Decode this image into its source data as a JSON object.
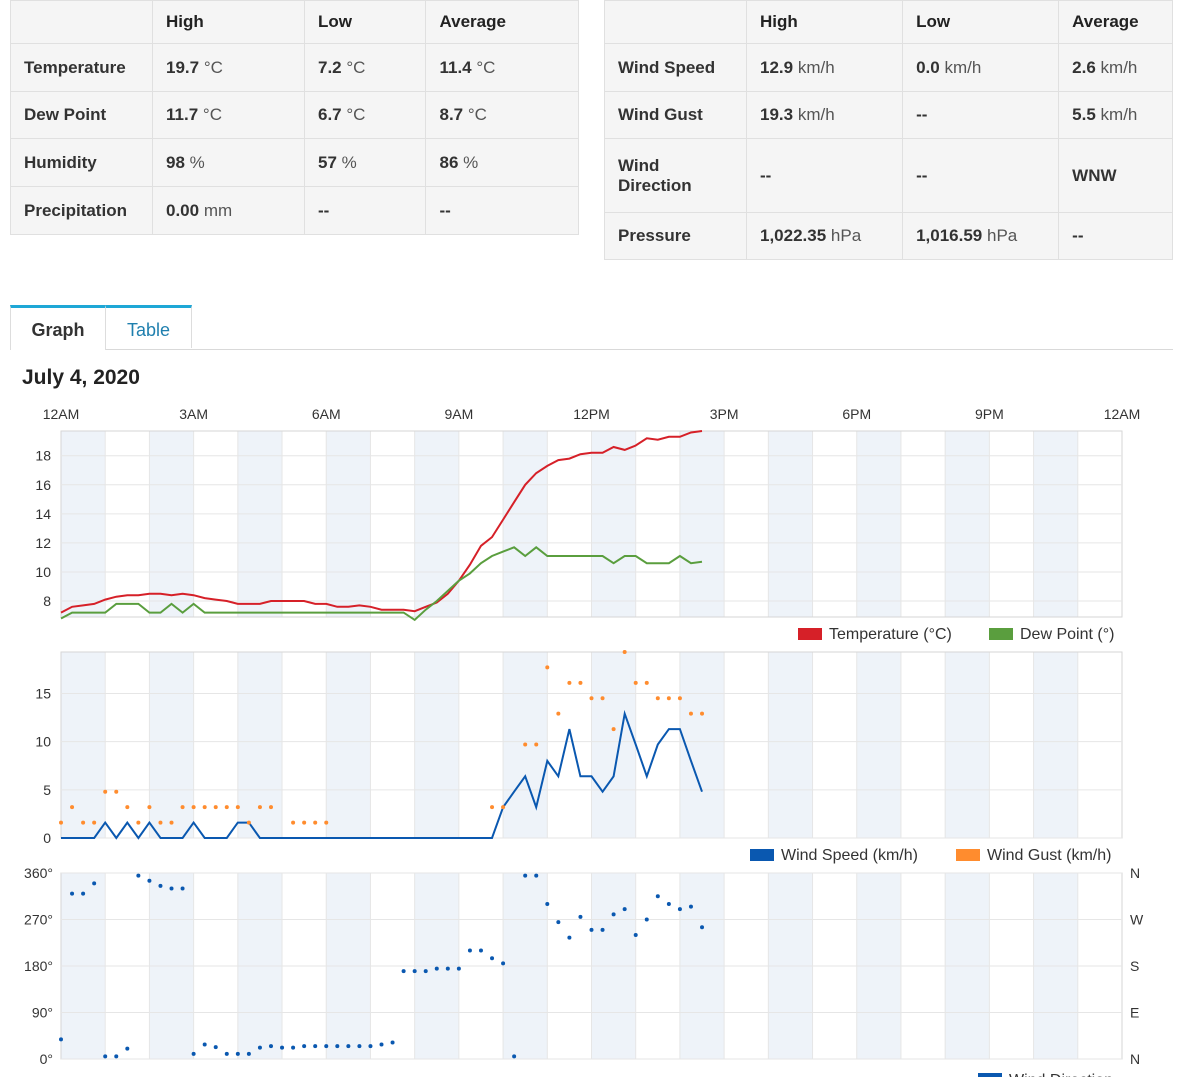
{
  "left_table": {
    "headers": [
      "",
      "High",
      "Low",
      "Average"
    ],
    "rows": [
      {
        "label": "Temperature",
        "high": "19.7",
        "high_unit": "°C",
        "low": "7.2",
        "low_unit": "°C",
        "avg": "11.4",
        "avg_unit": "°C"
      },
      {
        "label": "Dew Point",
        "high": "11.7",
        "high_unit": "°C",
        "low": "6.7",
        "low_unit": "°C",
        "avg": "8.7",
        "avg_unit": "°C"
      },
      {
        "label": "Humidity",
        "high": "98",
        "high_unit": "%",
        "low": "57",
        "low_unit": "%",
        "avg": "86",
        "avg_unit": "%"
      },
      {
        "label": "Precipitation",
        "high": "0.00",
        "high_unit": "mm",
        "low": "--",
        "low_unit": "",
        "avg": "--",
        "avg_unit": ""
      }
    ]
  },
  "right_table": {
    "headers": [
      "",
      "High",
      "Low",
      "Average"
    ],
    "rows": [
      {
        "label": "Wind Speed",
        "high": "12.9",
        "high_unit": "km/h",
        "low": "0.0",
        "low_unit": "km/h",
        "avg": "2.6",
        "avg_unit": "km/h"
      },
      {
        "label": "Wind Gust",
        "high": "19.3",
        "high_unit": "km/h",
        "low": "--",
        "low_unit": "",
        "avg": "5.5",
        "avg_unit": "km/h"
      },
      {
        "label": "Wind Direction",
        "high": "--",
        "high_unit": "",
        "low": "--",
        "low_unit": "",
        "avg": "WNW",
        "avg_unit": ""
      },
      {
        "label": "Pressure",
        "high": "1,022.35",
        "high_unit": "hPa",
        "low": "1,016.59",
        "low_unit": "hPa",
        "avg": "--",
        "avg_unit": ""
      }
    ]
  },
  "tabs": {
    "graph": "Graph",
    "table": "Table"
  },
  "date_title": "July 4, 2020",
  "colors": {
    "temperature": "#d62028",
    "dew_point": "#5a9e3e",
    "wind_speed": "#0a58b0",
    "wind_gust": "#ff8c2e",
    "wind_direction": "#0a58b0",
    "band": "#eef3f9"
  },
  "chart_data": [
    {
      "type": "line",
      "x_ticks": [
        "12AM",
        "3AM",
        "6AM",
        "9AM",
        "12PM",
        "3PM",
        "6PM",
        "9PM",
        "12AM"
      ],
      "x_range_hours": [
        0,
        24
      ],
      "y_ticks": [
        8,
        10,
        12,
        14,
        16,
        18
      ],
      "ylim": [
        6.9,
        19.7
      ],
      "legend": "bottom-right",
      "series": [
        {
          "name": "Temperature (°C)",
          "x": [
            0,
            0.25,
            0.5,
            0.75,
            1,
            1.25,
            1.5,
            1.75,
            2,
            2.25,
            2.5,
            2.75,
            3,
            3.25,
            3.5,
            3.75,
            4,
            4.25,
            4.5,
            4.75,
            5,
            5.25,
            5.5,
            5.75,
            6,
            6.25,
            6.5,
            6.75,
            7,
            7.25,
            7.5,
            7.75,
            8,
            8.25,
            8.5,
            8.75,
            9,
            9.25,
            9.5,
            9.75,
            10,
            10.25,
            10.5,
            10.75,
            11,
            11.25,
            11.5,
            11.75,
            12,
            12.25,
            12.5,
            12.75,
            13,
            13.25,
            13.5,
            13.75,
            14,
            14.25,
            14.5
          ],
          "values": [
            7.2,
            7.6,
            7.7,
            7.8,
            8.1,
            8.3,
            8.4,
            8.4,
            8.5,
            8.5,
            8.4,
            8.5,
            8.4,
            8.2,
            8.1,
            8.0,
            7.8,
            7.8,
            7.8,
            8.0,
            8.0,
            8.0,
            8.0,
            7.8,
            7.8,
            7.6,
            7.6,
            7.7,
            7.6,
            7.4,
            7.4,
            7.4,
            7.3,
            7.6,
            7.9,
            8.5,
            9.4,
            10.5,
            11.8,
            12.4,
            13.6,
            14.8,
            16.0,
            16.8,
            17.3,
            17.7,
            17.8,
            18.1,
            18.2,
            18.2,
            18.6,
            18.4,
            18.7,
            19.2,
            19.1,
            19.3,
            19.3,
            19.6,
            19.7
          ]
        },
        {
          "name": "Dew Point (°)",
          "x": [
            0,
            0.25,
            0.5,
            0.75,
            1,
            1.25,
            1.5,
            1.75,
            2,
            2.25,
            2.5,
            2.75,
            3,
            3.25,
            3.5,
            3.75,
            4,
            4.25,
            4.5,
            4.75,
            5,
            5.25,
            5.5,
            5.75,
            6,
            6.25,
            6.5,
            6.75,
            7,
            7.25,
            7.5,
            7.75,
            8,
            8.25,
            8.5,
            8.75,
            9,
            9.25,
            9.5,
            9.75,
            10,
            10.25,
            10.5,
            10.75,
            11,
            11.25,
            11.5,
            11.75,
            12,
            12.25,
            12.5,
            12.75,
            13,
            13.25,
            13.5,
            13.75,
            14,
            14.25,
            14.5
          ],
          "values": [
            6.8,
            7.2,
            7.2,
            7.2,
            7.2,
            7.8,
            7.8,
            7.8,
            7.2,
            7.2,
            7.8,
            7.2,
            7.8,
            7.2,
            7.2,
            7.2,
            7.2,
            7.2,
            7.2,
            7.2,
            7.2,
            7.2,
            7.2,
            7.2,
            7.2,
            7.2,
            7.2,
            7.2,
            7.2,
            7.2,
            7.2,
            7.2,
            6.7,
            7.4,
            8.0,
            8.7,
            9.4,
            9.9,
            10.6,
            11.1,
            11.4,
            11.7,
            11.1,
            11.7,
            11.1,
            11.1,
            11.1,
            11.1,
            11.1,
            11.1,
            10.6,
            11.1,
            11.1,
            10.6,
            10.6,
            10.6,
            11.1,
            10.6,
            10.7
          ]
        }
      ]
    },
    {
      "type": "line",
      "x_range_hours": [
        0,
        24
      ],
      "y_ticks": [
        0,
        5,
        10,
        15
      ],
      "ylim": [
        0,
        19.3
      ],
      "legend": "bottom-right",
      "series": [
        {
          "name": "Wind Speed (km/h)",
          "x": [
            0,
            0.25,
            0.5,
            0.75,
            1,
            1.25,
            1.5,
            1.75,
            2,
            2.25,
            2.5,
            2.75,
            3,
            3.25,
            3.5,
            3.75,
            4,
            4.25,
            4.5,
            4.75,
            5,
            5.25,
            5.5,
            5.75,
            6,
            6.25,
            6.5,
            6.75,
            7,
            7.25,
            7.5,
            7.75,
            8,
            8.25,
            8.5,
            8.75,
            9,
            9.25,
            9.5,
            9.75,
            10,
            10.25,
            10.5,
            10.75,
            11,
            11.25,
            11.5,
            11.75,
            12,
            12.25,
            12.5,
            12.75,
            13,
            13.25,
            13.5,
            13.75,
            14,
            14.25,
            14.5
          ],
          "values": [
            0,
            0,
            0,
            0,
            1.6,
            0,
            1.6,
            0,
            1.6,
            0,
            0,
            0,
            1.6,
            0,
            0,
            0,
            1.6,
            1.6,
            0,
            0,
            0,
            0,
            0,
            0,
            0,
            0,
            0,
            0,
            0,
            0,
            0,
            0,
            0,
            0,
            0,
            0,
            0,
            0,
            0,
            0,
            3.2,
            4.8,
            6.4,
            3.2,
            8.0,
            6.4,
            11.3,
            6.4,
            6.4,
            4.8,
            6.4,
            12.9,
            9.7,
            6.4,
            9.7,
            11.3,
            11.3,
            8.0,
            4.8
          ]
        },
        {
          "name": "Wind Gust (km/h)",
          "x": [
            0,
            0.25,
            0.5,
            0.75,
            1,
            1.25,
            1.5,
            1.75,
            2,
            2.25,
            2.5,
            2.75,
            3,
            3.25,
            3.5,
            3.75,
            4,
            4.25,
            4.5,
            4.75,
            5.25,
            5.5,
            5.75,
            6,
            9.75,
            10,
            10.5,
            10.75,
            11,
            11.25,
            11.5,
            11.75,
            12,
            12.25,
            12.5,
            12.75,
            13,
            13.25,
            13.5,
            13.75,
            14,
            14.25,
            14.5
          ],
          "values": [
            1.6,
            3.2,
            1.6,
            1.6,
            4.8,
            4.8,
            3.2,
            1.6,
            3.2,
            1.6,
            1.6,
            3.2,
            3.2,
            3.2,
            3.2,
            3.2,
            3.2,
            1.6,
            3.2,
            3.2,
            1.6,
            1.6,
            1.6,
            1.6,
            3.2,
            3.2,
            9.7,
            9.7,
            17.7,
            12.9,
            16.1,
            16.1,
            14.5,
            14.5,
            11.3,
            19.3,
            16.1,
            16.1,
            14.5,
            14.5,
            14.5,
            12.9,
            12.9
          ]
        }
      ]
    },
    {
      "type": "scatter",
      "x_range_hours": [
        0,
        24
      ],
      "y_ticks_left": [
        "0°",
        "90°",
        "180°",
        "270°",
        "360°"
      ],
      "y_ticks_right": [
        "N",
        "E",
        "S",
        "W",
        "N"
      ],
      "ylim": [
        0,
        360
      ],
      "series": [
        {
          "name": "Wind Direction",
          "x": [
            0,
            0.25,
            0.5,
            0.75,
            1,
            1.25,
            1.5,
            1.75,
            2,
            2.25,
            2.5,
            2.75,
            3,
            3.25,
            3.5,
            3.75,
            4,
            4.25,
            4.5,
            4.75,
            5,
            5.25,
            5.5,
            5.75,
            6,
            6.25,
            6.5,
            6.75,
            7,
            7.25,
            7.5,
            7.75,
            8,
            8.25,
            8.5,
            8.75,
            9,
            9.25,
            9.5,
            9.75,
            10,
            10.25,
            10.5,
            10.75,
            11,
            11.25,
            11.5,
            11.75,
            12,
            12.25,
            12.5,
            12.75,
            13,
            13.25,
            13.5,
            13.75,
            14,
            14.25,
            14.5
          ],
          "values": [
            38,
            320,
            320,
            340,
            5,
            5,
            20,
            355,
            345,
            335,
            330,
            330,
            10,
            28,
            23,
            10,
            10,
            10,
            22,
            25,
            22,
            22,
            25,
            25,
            25,
            25,
            25,
            25,
            25,
            28,
            32,
            170,
            170,
            170,
            175,
            175,
            175,
            210,
            210,
            195,
            185,
            5,
            355,
            355,
            300,
            265,
            235,
            275,
            250,
            250,
            280,
            290,
            240,
            270,
            315,
            300,
            290,
            295,
            255
          ]
        }
      ]
    }
  ]
}
